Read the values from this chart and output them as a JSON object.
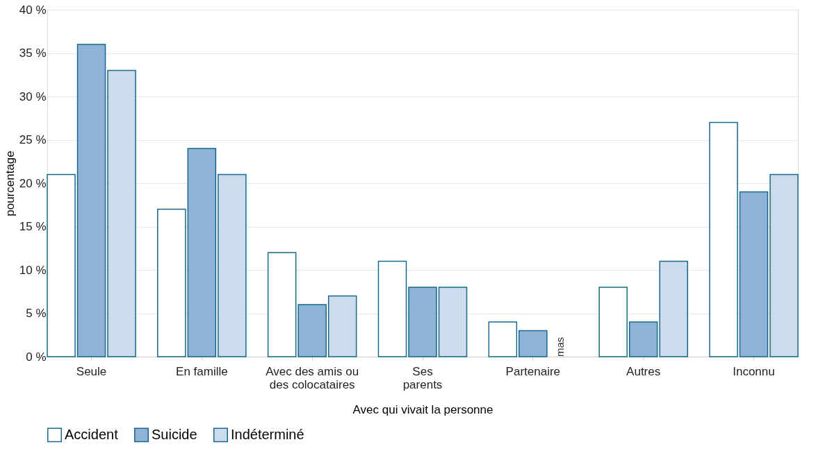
{
  "chart_data": {
    "type": "bar",
    "xlabel": "Avec qui vivait la personne",
    "ylabel": "pourcentage",
    "categories": [
      "Seule",
      "En famille",
      "Avec des amis ou\ndes colocataires",
      "Ses\nparents",
      "Partenaire",
      "Autres",
      "Inconnu"
    ],
    "series": [
      {
        "name": "Accident",
        "color": "#ffffff",
        "values": [
          21,
          17,
          12,
          11,
          4,
          8,
          27
        ]
      },
      {
        "name": "Suicide",
        "color": "#8fb3d6",
        "values": [
          36,
          24,
          6,
          8,
          3,
          4,
          19
        ]
      },
      {
        "name": "Indéterminé",
        "color": "#cddcec",
        "values": [
          33,
          21,
          7,
          8,
          null,
          11,
          21
        ]
      }
    ],
    "ylim": [
      0,
      40
    ],
    "yticks": [
      {
        "value": 0,
        "label": "0 %"
      },
      {
        "value": 5,
        "label": "5 %"
      },
      {
        "value": 10,
        "label": "10 %"
      },
      {
        "value": 15,
        "label": "15 %"
      },
      {
        "value": 20,
        "label": "20 %"
      },
      {
        "value": 25,
        "label": "25 %"
      },
      {
        "value": 30,
        "label": "30 %"
      },
      {
        "value": 35,
        "label": "35 %"
      },
      {
        "value": 40,
        "label": "40 %"
      }
    ],
    "annotations": [
      {
        "text": "mas",
        "x": "Partenaire",
        "y": 0
      }
    ],
    "grid": "y",
    "legend": "bottom"
  }
}
